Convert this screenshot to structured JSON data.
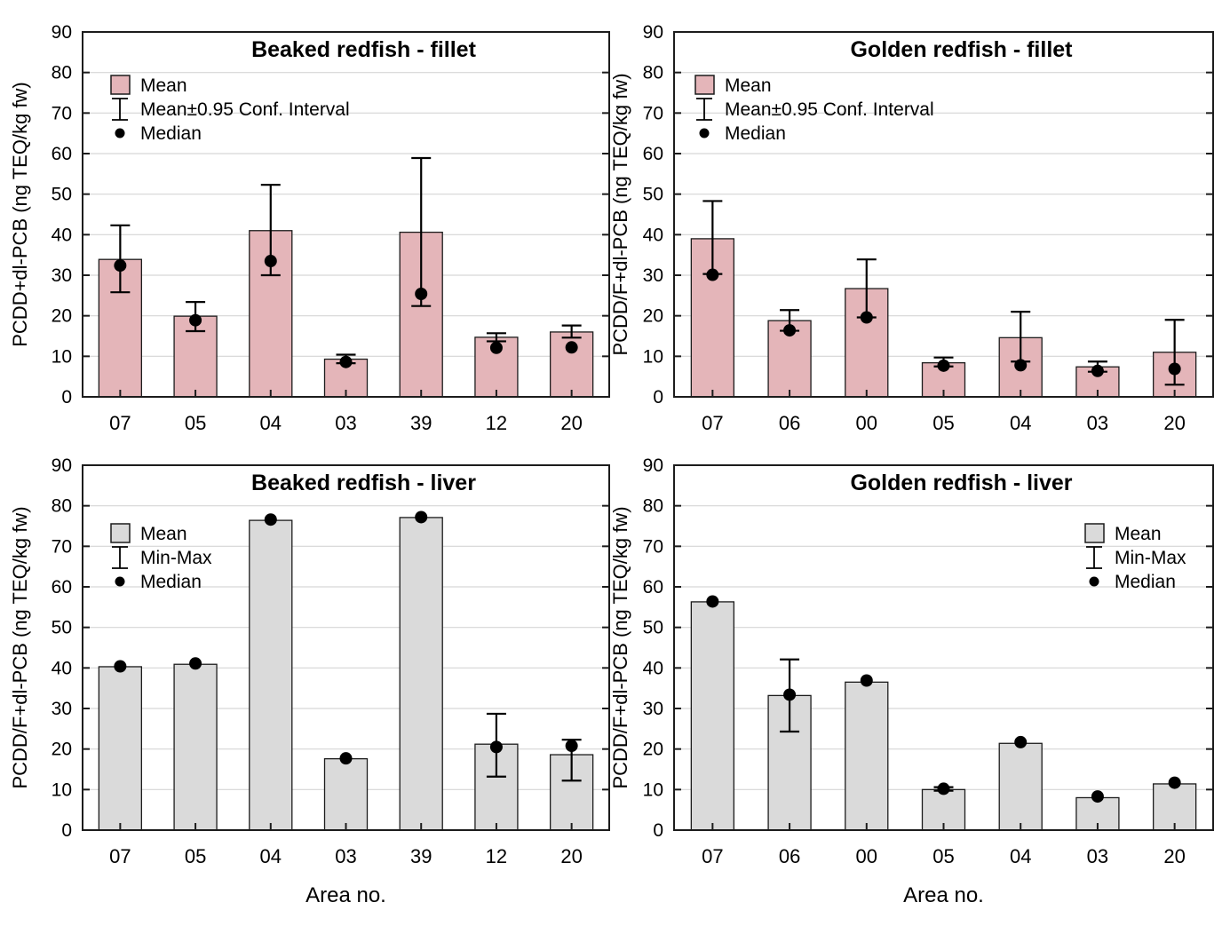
{
  "figure": {
    "description": "Four bar charts of dioxin levels (ng TEQ/kg fw) in redfish by area",
    "x_axis_title": "Area no.",
    "colors": {
      "pink_bar": "#e4b5b9",
      "gray_bar": "#dadada",
      "bar_border": "#1c1c1c",
      "frame": "#1c1c1c",
      "gridline": "#d6d6d6",
      "marker": "#000000"
    }
  },
  "chart_data": [
    {
      "id": "beaked-redfish-fillet",
      "type": "bar",
      "title": "Beaked redfish - fillet",
      "ylabel": "PCDD+dl-PCB (ng TEQ/kg fw)",
      "xlabel": "",
      "ylim": [
        0,
        90
      ],
      "ytick_step": 10,
      "grid": true,
      "bar_color": "#e4b5b9",
      "legend_position": "top-left",
      "legend": [
        {
          "glyph": "box",
          "label": "Mean"
        },
        {
          "glyph": "errorbar",
          "label": "Mean±0.95 Conf. Interval"
        },
        {
          "glyph": "dot",
          "label": "Median"
        }
      ],
      "categories": [
        "07",
        "05",
        "04",
        "03",
        "39",
        "12",
        "20"
      ],
      "mean": [
        33.9,
        19.9,
        41.0,
        9.3,
        40.6,
        14.7,
        16.0
      ],
      "err_lo": [
        25.8,
        16.2,
        30.0,
        8.3,
        22.4,
        13.7,
        14.6
      ],
      "err_hi": [
        42.3,
        23.4,
        52.3,
        10.4,
        58.9,
        15.7,
        17.6
      ],
      "median": [
        32.4,
        18.9,
        33.5,
        8.6,
        25.4,
        12.1,
        12.2
      ]
    },
    {
      "id": "golden-redfish-fillet",
      "type": "bar",
      "title": "Golden redfish - fillet",
      "ylabel": "PCDD/F+dl-PCB (ng TEQ/kg fw)",
      "xlabel": "",
      "ylim": [
        0,
        90
      ],
      "ytick_step": 10,
      "grid": true,
      "bar_color": "#e4b5b9",
      "legend_position": "top-left",
      "legend": [
        {
          "glyph": "box",
          "label": "Mean"
        },
        {
          "glyph": "errorbar",
          "label": "Mean±0.95 Conf. Interval"
        },
        {
          "glyph": "dot",
          "label": "Median"
        }
      ],
      "categories": [
        "07",
        "06",
        "00",
        "05",
        "04",
        "03",
        "20"
      ],
      "mean": [
        39.0,
        18.8,
        26.7,
        8.4,
        14.6,
        7.4,
        11.0
      ],
      "err_lo": [
        30.3,
        16.3,
        19.6,
        7.5,
        8.7,
        6.2,
        3.0
      ],
      "err_hi": [
        48.3,
        21.4,
        33.9,
        9.7,
        21.0,
        8.7,
        19.0
      ],
      "median": [
        30.1,
        16.4,
        19.6,
        7.7,
        7.8,
        6.4,
        6.9
      ]
    },
    {
      "id": "beaked-redfish-liver",
      "type": "bar",
      "title": "Beaked redfish - liver",
      "ylabel": "PCDD/F+dl-PCB (ng TEQ/kg fw)",
      "xlabel": "Area no.",
      "ylim": [
        0,
        90
      ],
      "ytick_step": 10,
      "grid": true,
      "bar_color": "#dadada",
      "legend_position": "top-left",
      "legend": [
        {
          "glyph": "box",
          "label": "Mean"
        },
        {
          "glyph": "errorbar",
          "label": "Min-Max"
        },
        {
          "glyph": "dot",
          "label": "Median"
        }
      ],
      "categories": [
        "07",
        "05",
        "04",
        "03",
        "39",
        "12",
        "20"
      ],
      "mean": [
        40.3,
        40.9,
        76.4,
        17.6,
        77.1,
        21.2,
        18.6
      ],
      "err_lo": [
        null,
        null,
        null,
        null,
        null,
        13.2,
        12.2
      ],
      "err_hi": [
        null,
        null,
        null,
        null,
        null,
        28.7,
        22.3
      ],
      "median": [
        40.4,
        41.1,
        76.6,
        17.7,
        77.2,
        20.5,
        20.8
      ]
    },
    {
      "id": "golden-redfish-liver",
      "type": "bar",
      "title": "Golden redfish - liver",
      "ylabel": "PCDD/F+dl-PCB (ng TEQ/kg fw)",
      "xlabel": "Area no.",
      "ylim": [
        0,
        90
      ],
      "ytick_step": 10,
      "grid": true,
      "bar_color": "#dadada",
      "legend_position": "top-right",
      "legend": [
        {
          "glyph": "box",
          "label": "Mean"
        },
        {
          "glyph": "errorbar",
          "label": "Min-Max"
        },
        {
          "glyph": "dot",
          "label": "Median"
        }
      ],
      "categories": [
        "07",
        "06",
        "00",
        "05",
        "04",
        "03",
        "20"
      ],
      "mean": [
        56.3,
        33.2,
        36.5,
        10.0,
        21.4,
        8.0,
        11.4
      ],
      "err_lo": [
        null,
        24.3,
        null,
        9.7,
        null,
        null,
        null
      ],
      "err_hi": [
        null,
        42.1,
        null,
        10.6,
        null,
        null,
        null
      ],
      "median": [
        56.4,
        33.4,
        36.9,
        10.2,
        21.7,
        8.3,
        11.7
      ]
    }
  ]
}
